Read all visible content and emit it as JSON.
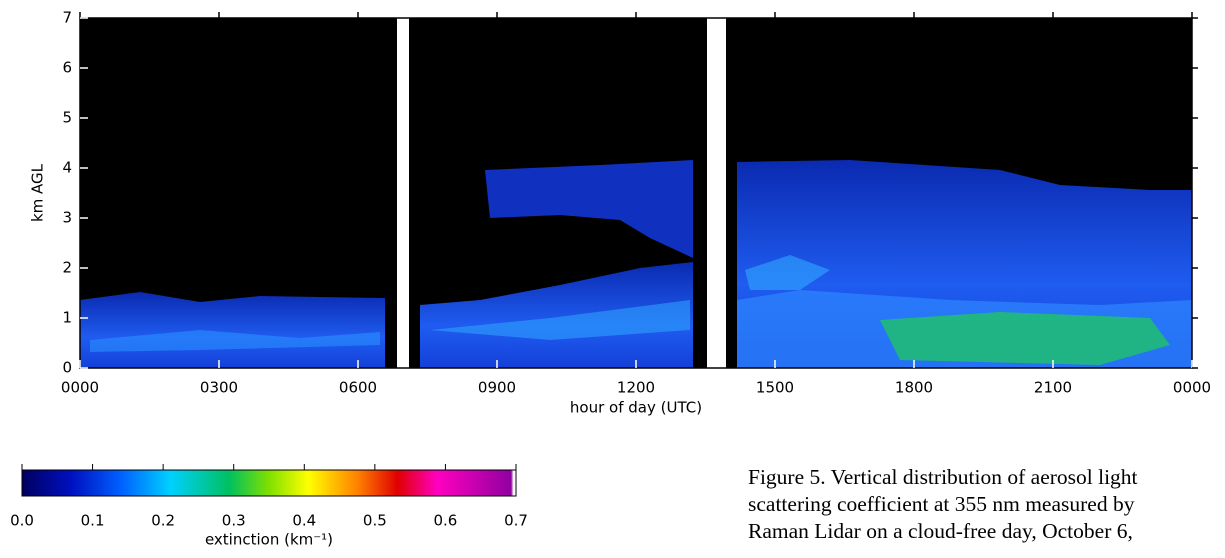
{
  "chart_data": {
    "type": "heatmap",
    "xlabel": "hour of day (UTC)",
    "ylabel": "km AGL",
    "xlim": [
      0,
      24
    ],
    "ylim": [
      0,
      7
    ],
    "xticks": [
      {
        "value": 0,
        "label": "0000"
      },
      {
        "value": 3,
        "label": "0300"
      },
      {
        "value": 6,
        "label": "0600"
      },
      {
        "value": 9,
        "label": "0900"
      },
      {
        "value": 12,
        "label": "1200"
      },
      {
        "value": 15,
        "label": "1500"
      },
      {
        "value": 18,
        "label": "1800"
      },
      {
        "value": 21,
        "label": "2100"
      },
      {
        "value": 24,
        "label": "0000"
      }
    ],
    "yticks": [
      0,
      1,
      2,
      3,
      4,
      5,
      6,
      7
    ],
    "colorbar": {
      "label": "extinction (km⁻¹)",
      "lim": [
        0,
        0.7
      ],
      "ticks": [
        {
          "value": 0,
          "label": "0.0"
        },
        0.1,
        0.2,
        0.3,
        0.4,
        0.5,
        0.6,
        0.7
      ]
    }
  },
  "caption": {
    "lines": [
      "Figure 5.  Vertical distribution of aerosol light",
      "scattering coefficient at 355 nm measured by",
      "Raman Lidar on a cloud-free day, October 6,"
    ]
  }
}
